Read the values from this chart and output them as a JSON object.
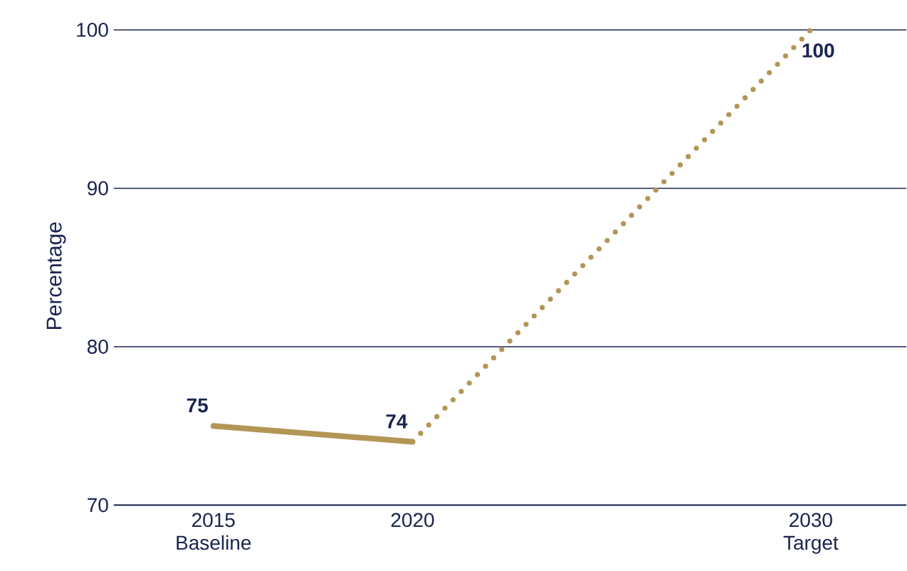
{
  "chart_data": {
    "type": "line",
    "ylabel": "Percentage",
    "xlim": [
      2012.5,
      2032.4
    ],
    "ylim": [
      70,
      100
    ],
    "xticks": [
      {
        "value": 2015,
        "label": "2015 Baseline"
      },
      2020,
      {
        "value": 2030,
        "label": "2030 Target"
      }
    ],
    "yticks": [
      70,
      80,
      90,
      100
    ],
    "grid": "y",
    "series": [
      {
        "color": "#b39656",
        "line_style": "solid",
        "x": [
          2015,
          2020
        ],
        "values": [
          75,
          74
        ],
        "value_labels": [
          "75",
          "74"
        ]
      },
      {
        "color": "#b39656",
        "line_style": "dotted",
        "x": [
          2020,
          2030
        ],
        "values": [
          74,
          100
        ],
        "value_labels": [
          null,
          "100"
        ]
      }
    ]
  }
}
